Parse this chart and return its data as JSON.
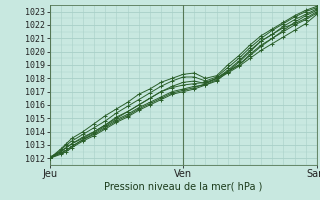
{
  "title": "",
  "xlabel": "Pression niveau de la mer( hPa )",
  "ylabel": "",
  "background_color": "#c8e8e0",
  "fig_color": "#c8e8e0",
  "grid_color": "#a8d0c8",
  "vline_color": "#557755",
  "line_color": "#2a5f2a",
  "xlim": [
    0,
    48
  ],
  "ylim": [
    1011.5,
    1023.5
  ],
  "yticks": [
    1012,
    1013,
    1014,
    1015,
    1016,
    1017,
    1018,
    1019,
    1020,
    1021,
    1022,
    1023
  ],
  "xtick_positions": [
    0,
    24,
    48
  ],
  "xtick_labels": [
    "Jeu",
    "Ven",
    "Sam"
  ],
  "vline_positions": [
    0,
    24,
    48
  ],
  "lines": [
    {
      "x": [
        0,
        2,
        3,
        4,
        6,
        8,
        10,
        12,
        14,
        16,
        18,
        20,
        22,
        24,
        26,
        28,
        30,
        32,
        34,
        36,
        38,
        40,
        42,
        44,
        46,
        48
      ],
      "y": [
        1012.0,
        1012.5,
        1012.8,
        1013.1,
        1013.5,
        1014.0,
        1014.5,
        1015.0,
        1015.5,
        1016.0,
        1016.5,
        1017.0,
        1017.3,
        1017.5,
        1017.6,
        1017.7,
        1018.0,
        1018.5,
        1019.2,
        1020.0,
        1020.8,
        1021.3,
        1021.8,
        1022.1,
        1022.5,
        1023.0
      ]
    },
    {
      "x": [
        0,
        2,
        3,
        4,
        6,
        8,
        10,
        12,
        14,
        16,
        18,
        20,
        22,
        24,
        26,
        28,
        30,
        32,
        34,
        36,
        38,
        40,
        42,
        44,
        46,
        48
      ],
      "y": [
        1012.0,
        1012.4,
        1012.6,
        1012.9,
        1013.4,
        1013.9,
        1014.4,
        1014.9,
        1015.3,
        1015.8,
        1016.2,
        1016.6,
        1017.0,
        1017.2,
        1017.4,
        1017.5,
        1017.8,
        1018.5,
        1019.0,
        1019.8,
        1020.5,
        1021.0,
        1021.6,
        1022.2,
        1022.7,
        1023.1
      ]
    },
    {
      "x": [
        0,
        2,
        3,
        4,
        6,
        8,
        10,
        12,
        14,
        16,
        18,
        20,
        22,
        24,
        26,
        28,
        30,
        32,
        34,
        36,
        38,
        40,
        42,
        44,
        46,
        48
      ],
      "y": [
        1012.0,
        1012.3,
        1012.5,
        1012.8,
        1013.3,
        1013.7,
        1014.2,
        1014.7,
        1015.1,
        1015.6,
        1016.0,
        1016.4,
        1016.8,
        1017.0,
        1017.2,
        1017.5,
        1017.9,
        1018.4,
        1018.9,
        1019.5,
        1020.1,
        1020.6,
        1021.1,
        1021.6,
        1022.1,
        1022.8
      ]
    },
    {
      "x": [
        0,
        2,
        3,
        4,
        6,
        8,
        10,
        12,
        14,
        16,
        18,
        20,
        22,
        24,
        26,
        28,
        30,
        32,
        34,
        36,
        38,
        40,
        42,
        44,
        46,
        48
      ],
      "y": [
        1012.1,
        1012.5,
        1012.8,
        1013.1,
        1013.6,
        1014.0,
        1014.5,
        1015.1,
        1015.5,
        1016.0,
        1016.5,
        1017.0,
        1017.4,
        1017.7,
        1017.8,
        1017.6,
        1018.0,
        1018.6,
        1019.3,
        1020.1,
        1020.8,
        1021.3,
        1021.9,
        1022.4,
        1022.8,
        1023.2
      ]
    },
    {
      "x": [
        0,
        2,
        3,
        4,
        6,
        8,
        10,
        12,
        14,
        16,
        18,
        20,
        22,
        24,
        26,
        28,
        30,
        32,
        34,
        36,
        38,
        40,
        42,
        44,
        46,
        48
      ],
      "y": [
        1012.0,
        1012.4,
        1012.6,
        1012.9,
        1013.4,
        1013.8,
        1014.3,
        1014.8,
        1015.2,
        1015.7,
        1016.1,
        1016.5,
        1016.9,
        1017.1,
        1017.3,
        1017.6,
        1018.0,
        1018.5,
        1019.0,
        1019.7,
        1020.4,
        1021.0,
        1021.5,
        1022.0,
        1022.4,
        1022.9
      ]
    },
    {
      "x": [
        0,
        2,
        3,
        4,
        6,
        8,
        10,
        12,
        14,
        16,
        18,
        20,
        22,
        24,
        26,
        28,
        30,
        32,
        34,
        36,
        38,
        40,
        42,
        44,
        46,
        48
      ],
      "y": [
        1012.0,
        1012.6,
        1013.0,
        1013.3,
        1013.8,
        1014.3,
        1014.8,
        1015.4,
        1015.9,
        1016.4,
        1016.9,
        1017.4,
        1017.8,
        1018.1,
        1018.1,
        1017.8,
        1018.1,
        1018.8,
        1019.5,
        1020.3,
        1021.0,
        1021.6,
        1022.1,
        1022.6,
        1023.0,
        1023.3
      ]
    },
    {
      "x": [
        0,
        2,
        3,
        4,
        6,
        8,
        10,
        12,
        14,
        16,
        18,
        20,
        22,
        24,
        26,
        28,
        30,
        32,
        34,
        36,
        38,
        40,
        42,
        44,
        46,
        48
      ],
      "y": [
        1012.0,
        1012.7,
        1013.1,
        1013.5,
        1014.0,
        1014.6,
        1015.2,
        1015.7,
        1016.2,
        1016.8,
        1017.2,
        1017.7,
        1018.0,
        1018.3,
        1018.4,
        1018.0,
        1018.2,
        1019.0,
        1019.7,
        1020.5,
        1021.2,
        1021.7,
        1022.2,
        1022.7,
        1023.1,
        1023.4
      ]
    }
  ]
}
